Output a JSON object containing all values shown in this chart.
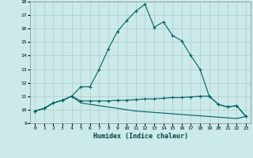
{
  "xlabel": "Humidex (Indice chaleur)",
  "bg_color": "#cceaea",
  "line_color": "#006060",
  "grid_color": "#b0d0d0",
  "x_values": [
    0,
    1,
    2,
    3,
    4,
    5,
    6,
    7,
    8,
    9,
    10,
    11,
    12,
    13,
    14,
    15,
    16,
    17,
    18,
    19,
    20,
    21,
    22,
    23
  ],
  "line1_y": [
    9.9,
    10.1,
    10.5,
    10.7,
    11.0,
    11.7,
    11.7,
    13.0,
    14.5,
    15.8,
    16.6,
    17.3,
    17.8,
    16.1,
    16.5,
    15.5,
    15.1,
    14.0,
    13.0,
    11.0,
    10.4,
    10.2,
    10.3,
    9.5
  ],
  "line2_y": [
    9.9,
    10.1,
    10.5,
    10.7,
    11.0,
    10.65,
    10.65,
    10.65,
    10.65,
    10.7,
    10.7,
    10.75,
    10.8,
    10.8,
    10.85,
    10.9,
    10.9,
    10.95,
    11.0,
    11.0,
    10.4,
    10.2,
    10.3,
    9.5
  ],
  "line3_y": [
    9.9,
    10.1,
    10.5,
    10.7,
    11.0,
    10.5,
    10.4,
    10.3,
    10.2,
    10.1,
    10.0,
    9.9,
    9.85,
    9.8,
    9.75,
    9.7,
    9.65,
    9.6,
    9.55,
    9.5,
    9.45,
    9.4,
    9.35,
    9.5
  ],
  "ylim": [
    9,
    18
  ],
  "xlim": [
    -0.5,
    23.5
  ],
  "yticks": [
    9,
    10,
    11,
    12,
    13,
    14,
    15,
    16,
    17,
    18
  ],
  "xticks": [
    0,
    1,
    2,
    3,
    4,
    5,
    6,
    7,
    8,
    9,
    10,
    11,
    12,
    13,
    14,
    15,
    16,
    17,
    18,
    19,
    20,
    21,
    22,
    23
  ]
}
